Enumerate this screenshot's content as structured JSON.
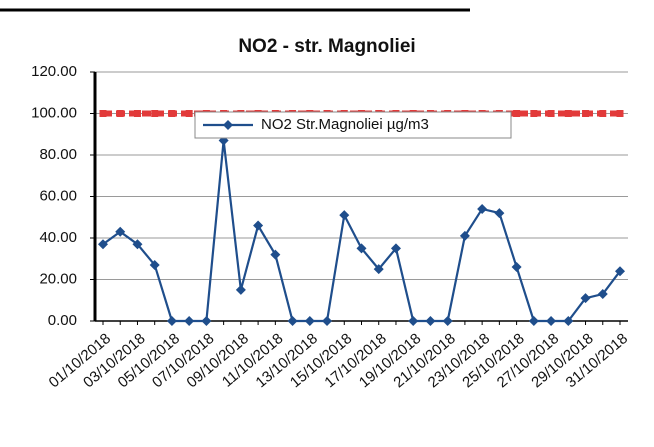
{
  "chart_data": {
    "type": "line",
    "title": "NO2 - str. Magnoliei",
    "categories": [
      "01/10/2018",
      null,
      "03/10/2018",
      null,
      "05/10/2018",
      null,
      "07/10/2018",
      null,
      "09/10/2018",
      null,
      "11/10/2018",
      null,
      "13/10/2018",
      null,
      "15/10/2018",
      null,
      "17/10/2018",
      null,
      "19/10/2018",
      null,
      "21/10/2018",
      null,
      "23/10/2018",
      null,
      "25/10/2018",
      null,
      "27/10/2018",
      null,
      "29/10/2018",
      null,
      "31/10/2018"
    ],
    "series": [
      {
        "name": "NO2 Str.Magnoliei  µg/m3",
        "color": "#1f4e8c",
        "marker": "diamond",
        "values": [
          37,
          43,
          37,
          27,
          0,
          0,
          0,
          87,
          15,
          46,
          32,
          0,
          0,
          0,
          51,
          35,
          25,
          35,
          0,
          0,
          0,
          41,
          54,
          52,
          26,
          0,
          0,
          0,
          11,
          13,
          24
        ]
      },
      {
        "color": "#e23a3a",
        "marker": "square",
        "dashed": true,
        "values": [
          100,
          100,
          100,
          100,
          100,
          100,
          100,
          100,
          100,
          100,
          100,
          100,
          100,
          100,
          100,
          100,
          100,
          100,
          100,
          100,
          100,
          100,
          100,
          100,
          100,
          100,
          100,
          100,
          100,
          100,
          100
        ]
      }
    ],
    "ylim": [
      0,
      120
    ],
    "yticks": [
      {
        "value": 0,
        "label": "0.00"
      },
      {
        "value": 20,
        "label": "20.00"
      },
      {
        "value": 40,
        "label": "40.00"
      },
      {
        "value": 60,
        "label": "60.00"
      },
      {
        "value": 80,
        "label": "80.00"
      },
      {
        "value": 100,
        "label": "100.00"
      },
      {
        "value": 120,
        "label": "120.00"
      }
    ],
    "grid": true,
    "legend": "top"
  }
}
